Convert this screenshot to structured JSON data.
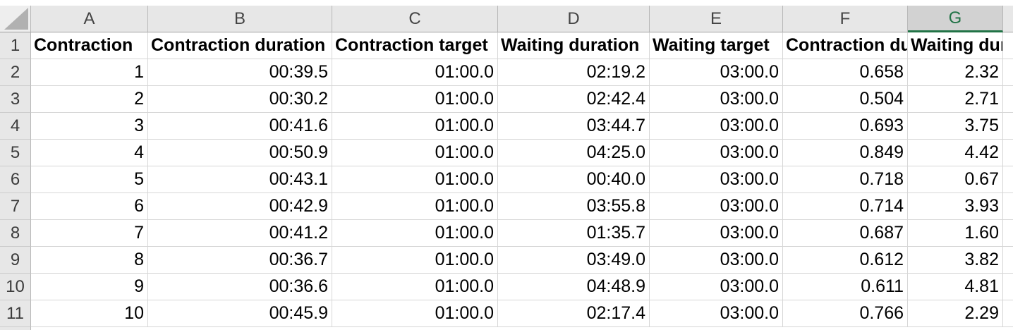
{
  "grid": {
    "column_headers": [
      "A",
      "B",
      "C",
      "D",
      "E",
      "F",
      "G"
    ],
    "selected_column": "G",
    "row_numbers": [
      1,
      2,
      3,
      4,
      5,
      6,
      7,
      8,
      9,
      10,
      11
    ],
    "field_headers": [
      "Contraction",
      "Contraction duration",
      "Contraction target",
      "Waiting duration",
      "Waiting target",
      "Contraction du",
      "Waiting dura"
    ],
    "rows": [
      [
        "1",
        "00:39.5",
        "01:00.0",
        "02:19.2",
        "03:00.0",
        "0.658",
        "2.32"
      ],
      [
        "2",
        "00:30.2",
        "01:00.0",
        "02:42.4",
        "03:00.0",
        "0.504",
        "2.71"
      ],
      [
        "3",
        "00:41.6",
        "01:00.0",
        "03:44.7",
        "03:00.0",
        "0.693",
        "3.75"
      ],
      [
        "4",
        "00:50.9",
        "01:00.0",
        "04:25.0",
        "03:00.0",
        "0.849",
        "4.42"
      ],
      [
        "5",
        "00:43.1",
        "01:00.0",
        "00:40.0",
        "03:00.0",
        "0.718",
        "0.67"
      ],
      [
        "6",
        "00:42.9",
        "01:00.0",
        "03:55.8",
        "03:00.0",
        "0.714",
        "3.93"
      ],
      [
        "7",
        "00:41.2",
        "01:00.0",
        "01:35.7",
        "03:00.0",
        "0.687",
        "1.60"
      ],
      [
        "8",
        "00:36.7",
        "01:00.0",
        "03:49.0",
        "03:00.0",
        "0.612",
        "3.82"
      ],
      [
        "9",
        "00:36.6",
        "01:00.0",
        "04:48.9",
        "03:00.0",
        "0.611",
        "4.81"
      ],
      [
        "10",
        "00:45.9",
        "01:00.0",
        "02:17.4",
        "03:00.0",
        "0.766",
        "2.29"
      ]
    ],
    "colors": {
      "selected_green": "#217346",
      "header_bg": "#e7e7e7",
      "selected_header_bg": "#d2d2d2",
      "gridline": "#d6d6d6"
    }
  }
}
